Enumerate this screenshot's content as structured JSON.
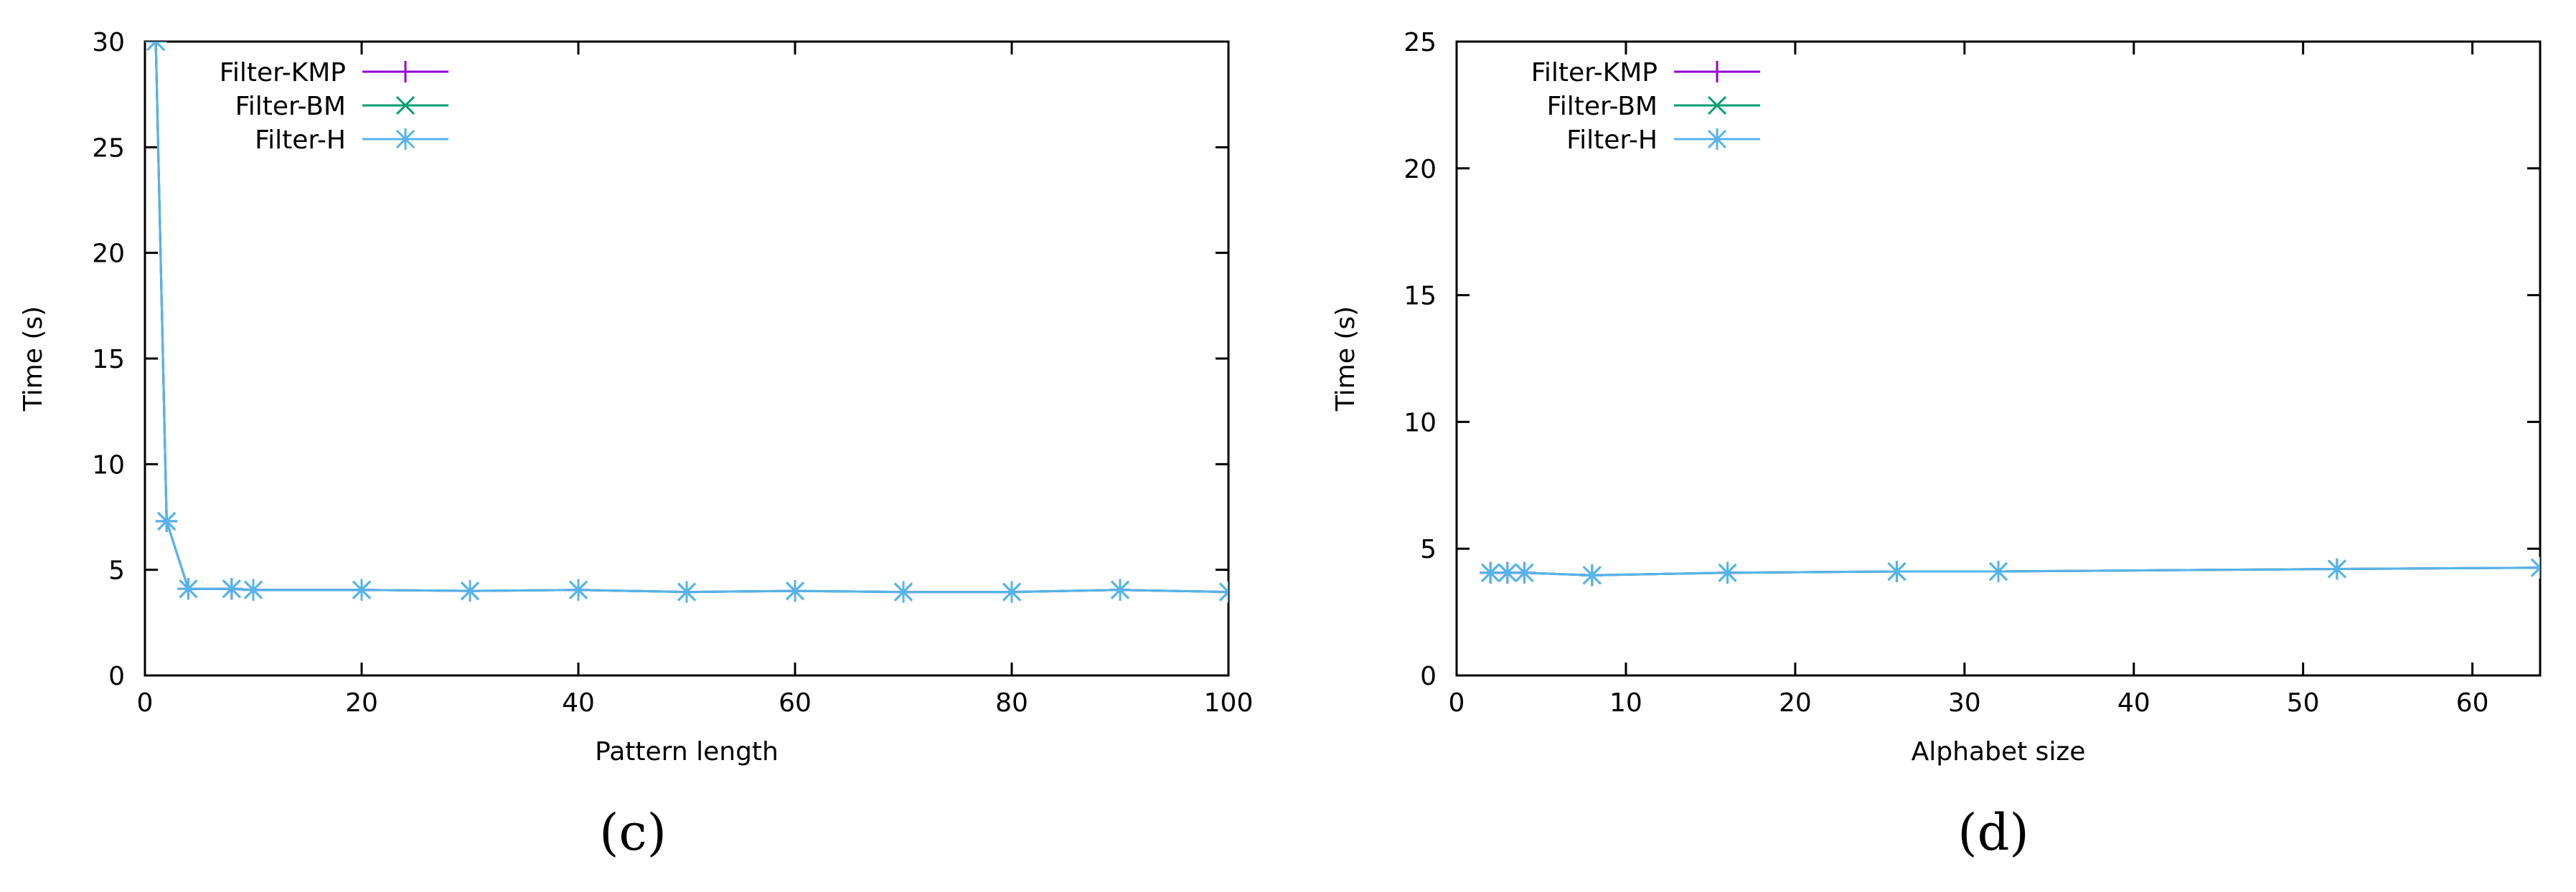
{
  "chart_data": [
    {
      "type": "line",
      "panel_label": "(c)",
      "xlabel": "Pattern length",
      "ylabel": "Time (s)",
      "xlim": [
        0,
        100
      ],
      "ylim": [
        0,
        30
      ],
      "xticks": [
        0,
        20,
        40,
        60,
        80,
        100
      ],
      "yticks": [
        0,
        5,
        10,
        15,
        20,
        25,
        30
      ],
      "grid": false,
      "legend_position": "top-left",
      "series": [
        {
          "name": "Filter-KMP",
          "color": "#9400d3",
          "marker": "plus",
          "points": [
            [
              1,
              30
            ],
            [
              2,
              7.3
            ],
            [
              4,
              4.1
            ],
            [
              8,
              4.1
            ],
            [
              10,
              4.05
            ],
            [
              20,
              4.05
            ],
            [
              30,
              4.0
            ],
            [
              40,
              4.05
            ],
            [
              50,
              3.95
            ],
            [
              60,
              4.0
            ],
            [
              70,
              3.95
            ],
            [
              80,
              3.95
            ],
            [
              90,
              4.05
            ],
            [
              100,
              3.95
            ]
          ]
        },
        {
          "name": "Filter-BM",
          "color": "#009e73",
          "marker": "x",
          "points": [
            [
              1,
              30
            ],
            [
              2,
              7.3
            ],
            [
              4,
              4.1
            ],
            [
              8,
              4.1
            ],
            [
              10,
              4.05
            ],
            [
              20,
              4.05
            ],
            [
              30,
              4.0
            ],
            [
              40,
              4.05
            ],
            [
              50,
              3.95
            ],
            [
              60,
              4.0
            ],
            [
              70,
              3.95
            ],
            [
              80,
              3.95
            ],
            [
              90,
              4.05
            ],
            [
              100,
              3.95
            ]
          ]
        },
        {
          "name": "Filter-H",
          "color": "#56b4e9",
          "marker": "star",
          "points": [
            [
              1,
              30
            ],
            [
              2,
              7.3
            ],
            [
              4,
              4.1
            ],
            [
              8,
              4.1
            ],
            [
              10,
              4.05
            ],
            [
              20,
              4.05
            ],
            [
              30,
              4.0
            ],
            [
              40,
              4.05
            ],
            [
              50,
              3.95
            ],
            [
              60,
              4.0
            ],
            [
              70,
              3.95
            ],
            [
              80,
              3.95
            ],
            [
              90,
              4.05
            ],
            [
              100,
              3.95
            ]
          ]
        }
      ]
    },
    {
      "type": "line",
      "panel_label": "(d)",
      "xlabel": "Alphabet size",
      "ylabel": "Time (s)",
      "xlim": [
        0,
        64
      ],
      "ylim": [
        0,
        25
      ],
      "xticks": [
        0,
        10,
        20,
        30,
        40,
        50,
        60
      ],
      "yticks": [
        0,
        5,
        10,
        15,
        20,
        25
      ],
      "grid": false,
      "legend_position": "top-left",
      "series": [
        {
          "name": "Filter-KMP",
          "color": "#9400d3",
          "marker": "plus",
          "points": [
            [
              2,
              4.05
            ],
            [
              3,
              4.05
            ],
            [
              4,
              4.05
            ],
            [
              8,
              3.95
            ],
            [
              16,
              4.05
            ],
            [
              26,
              4.1
            ],
            [
              32,
              4.1
            ],
            [
              52,
              4.2
            ],
            [
              64,
              4.25
            ]
          ]
        },
        {
          "name": "Filter-BM",
          "color": "#009e73",
          "marker": "x",
          "points": [
            [
              2,
              4.05
            ],
            [
              3,
              4.05
            ],
            [
              4,
              4.05
            ],
            [
              8,
              3.95
            ],
            [
              16,
              4.05
            ],
            [
              26,
              4.1
            ],
            [
              32,
              4.1
            ],
            [
              52,
              4.2
            ],
            [
              64,
              4.25
            ]
          ]
        },
        {
          "name": "Filter-H",
          "color": "#56b4e9",
          "marker": "star",
          "points": [
            [
              2,
              4.05
            ],
            [
              3,
              4.05
            ],
            [
              4,
              4.05
            ],
            [
              8,
              3.95
            ],
            [
              16,
              4.05
            ],
            [
              26,
              4.1
            ],
            [
              32,
              4.1
            ],
            [
              52,
              4.2
            ],
            [
              64,
              4.25
            ]
          ]
        }
      ]
    }
  ]
}
